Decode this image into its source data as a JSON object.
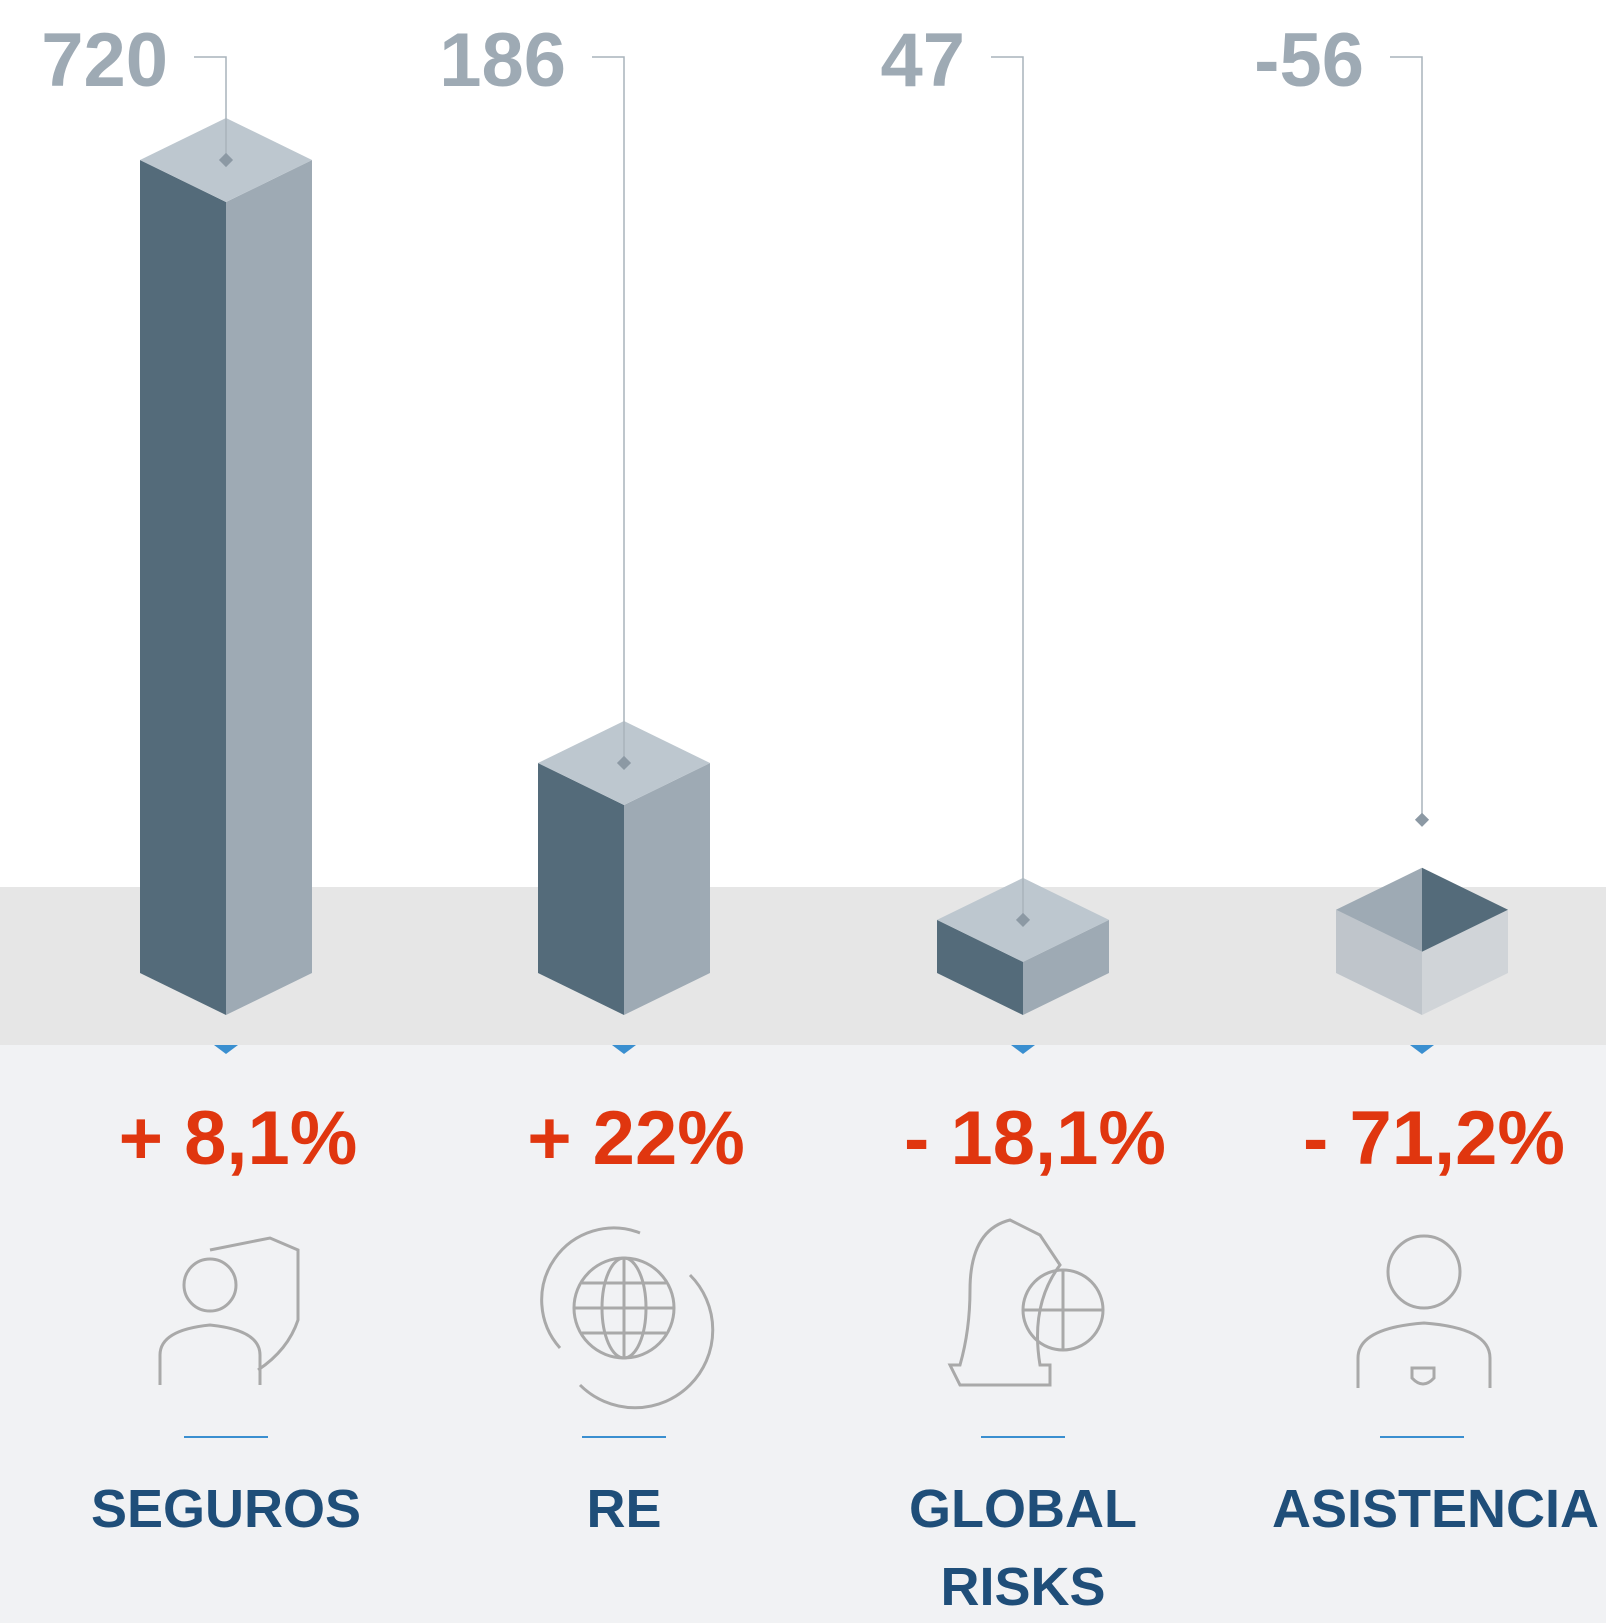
{
  "chart_data": {
    "type": "bar",
    "categories": [
      "SEGUROS",
      "RE",
      "GLOBAL RISKS",
      "ASISTENCIA"
    ],
    "values": [
      720,
      186,
      47,
      -56
    ],
    "change_labels": [
      "+ 8,1%",
      "+ 22%",
      "- 18,1%",
      "- 71,2%"
    ],
    "colors": {
      "front_left": "#546b7a",
      "front_right": "#9eaab4",
      "top": "#bdc7cf",
      "value_label": "#9eaab4",
      "change_label": "#e0360f",
      "category_label": "#1f4e79"
    }
  }
}
